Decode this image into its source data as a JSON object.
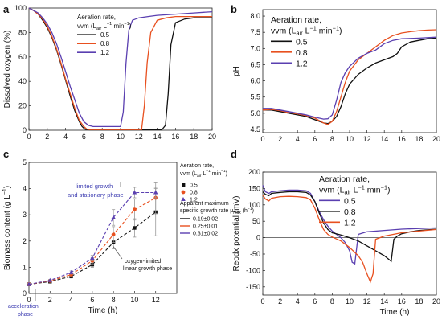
{
  "colors": {
    "black": "#111111",
    "orange": "#e8501f",
    "purple": "#5a3fb0",
    "annot": "#3a3ab0"
  },
  "chart_data": [
    {
      "panel": "a",
      "type": "line",
      "xlabel": "",
      "ylabel": "Dissolved oxygen (%)",
      "xlim": [
        0,
        20
      ],
      "ylim": [
        0,
        100
      ],
      "xticks": [
        0,
        2,
        4,
        6,
        8,
        10,
        12,
        14,
        16,
        18,
        20
      ],
      "yticks": [
        0,
        20,
        40,
        60,
        80,
        100
      ],
      "legend": {
        "title_line1": "Aeration rate,",
        "title_line2": "vvm (L",
        "title_sub": "air",
        "title_mid": " L",
        "title_sup": "−1",
        "title_end": " min",
        "title_sup2": "−1",
        "title_close": ")",
        "placement": "top-middle"
      },
      "series": [
        {
          "name": "0.5",
          "color": "black",
          "x": [
            0,
            0.5,
            1,
            1.5,
            2,
            2.5,
            3,
            3.5,
            4,
            4.5,
            5,
            5.5,
            5.8,
            6.1,
            6.3,
            6.6,
            7,
            9,
            11,
            13,
            14,
            14.5,
            14.9,
            15.2,
            15.5,
            16,
            17,
            18,
            19,
            20
          ],
          "y": [
            100,
            98,
            95,
            90,
            84,
            76,
            66,
            54,
            41,
            28,
            16,
            7,
            3,
            1,
            0.5,
            0.3,
            0.3,
            0.3,
            0.3,
            0.3,
            0.3,
            0.3,
            4,
            30,
            70,
            88,
            91,
            92,
            92,
            92
          ]
        },
        {
          "name": "0.8",
          "color": "orange",
          "x": [
            0,
            0.5,
            1,
            1.5,
            2,
            2.5,
            3,
            3.5,
            4,
            4.5,
            5,
            5.5,
            6,
            6.3,
            6.6,
            7,
            9,
            11,
            12,
            12.3,
            12.6,
            12.9,
            13.3,
            14,
            15,
            16,
            18,
            20
          ],
          "y": [
            100,
            98,
            95,
            91,
            85,
            77,
            67,
            55,
            42,
            30,
            18,
            8,
            3,
            1,
            0.5,
            0.5,
            0.5,
            0.5,
            0.5,
            0.5,
            20,
            55,
            80,
            90,
            92,
            93,
            93,
            93
          ]
        },
        {
          "name": "1.2",
          "color": "purple",
          "x": [
            0,
            0.5,
            1,
            1.5,
            2,
            2.5,
            3,
            3.5,
            4,
            4.5,
            5,
            5.5,
            6,
            6.5,
            7,
            8,
            9,
            10,
            10.3,
            10.6,
            10.9,
            11.3,
            12,
            13,
            14,
            16,
            18,
            20
          ],
          "y": [
            100,
            98,
            96,
            92,
            87,
            80,
            71,
            60,
            48,
            36,
            25,
            14,
            7,
            4,
            3,
            3,
            3,
            3,
            15,
            55,
            82,
            90,
            92,
            93,
            94,
            95,
            96,
            97
          ]
        }
      ]
    },
    {
      "panel": "b",
      "type": "line",
      "xlabel": "",
      "ylabel": "pH",
      "xlim": [
        0,
        20
      ],
      "ylim": [
        4.4,
        8.2
      ],
      "xticks": [
        0,
        2,
        4,
        6,
        8,
        10,
        12,
        14,
        16,
        18,
        20
      ],
      "yticks": [
        4.5,
        5.0,
        5.5,
        6.0,
        6.5,
        7.0,
        7.5,
        8.0
      ],
      "ytick_labels": [
        "4.5",
        "5.0",
        "5.5",
        "6.0",
        "6.5",
        "7.0",
        "7.5",
        "8.0"
      ],
      "legend": {
        "title_line1": "Aeration rate,",
        "title_line2": "vvm (L",
        "title_sub": "air",
        "title_mid": " L",
        "title_sup": "−1",
        "title_end": " min",
        "title_sup2": "−1",
        "title_close": ")",
        "placement": "top-left"
      },
      "series": [
        {
          "name": "0.5",
          "color": "black",
          "x": [
            0,
            1,
            2,
            3,
            4,
            5,
            6,
            7,
            7.5,
            8,
            8.5,
            9,
            9.5,
            10,
            11,
            12,
            13,
            14,
            15,
            15.5,
            16,
            17,
            18,
            19,
            20
          ],
          "y": [
            5.1,
            5.1,
            5.05,
            5.0,
            4.95,
            4.9,
            4.8,
            4.7,
            4.68,
            4.75,
            4.9,
            5.2,
            5.6,
            5.9,
            6.2,
            6.4,
            6.55,
            6.65,
            6.75,
            6.85,
            7.05,
            7.2,
            7.25,
            7.3,
            7.32
          ]
        },
        {
          "name": "0.8",
          "color": "orange",
          "x": [
            0,
            1,
            2,
            3,
            4,
            5,
            6,
            7,
            7.5,
            8,
            8.5,
            9,
            9.5,
            10,
            11,
            12,
            13,
            14,
            15,
            16,
            17,
            18,
            19,
            20
          ],
          "y": [
            5.1,
            5.12,
            5.08,
            5.02,
            4.98,
            4.93,
            4.85,
            4.7,
            4.65,
            4.75,
            5.05,
            5.5,
            5.95,
            6.3,
            6.65,
            6.85,
            7.05,
            7.25,
            7.4,
            7.48,
            7.52,
            7.55,
            7.57,
            7.58
          ]
        },
        {
          "name": "1.2",
          "color": "purple",
          "x": [
            0,
            1,
            2,
            3,
            4,
            5,
            6,
            7,
            7.5,
            8,
            8.5,
            9,
            9.5,
            10,
            11,
            12,
            13,
            14,
            15,
            16,
            18,
            20
          ],
          "y": [
            5.15,
            5.15,
            5.1,
            5.05,
            5.0,
            4.95,
            4.88,
            4.82,
            4.83,
            4.95,
            5.4,
            5.95,
            6.25,
            6.45,
            6.7,
            6.85,
            6.95,
            7.15,
            7.25,
            7.3,
            7.32,
            7.35
          ]
        }
      ]
    },
    {
      "panel": "c",
      "type": "scatter",
      "xlabel": "Time (h)",
      "ylabel": "Biomass content (g L",
      "ylabel_sup": "−1",
      "ylabel_close": ")",
      "xlim": [
        0,
        14
      ],
      "ylim": [
        0,
        5
      ],
      "xticks": [
        0,
        2,
        4,
        6,
        8,
        10,
        12
      ],
      "yticks": [
        0,
        1,
        2,
        3,
        4,
        5
      ],
      "legend": {
        "title_line1": "Aeration rate,",
        "title_line2": "vvm (L",
        "title_sub": "air",
        "title_mid": " L",
        "title_sup": "−1",
        "title_end": " min",
        "title_sup2": "−1",
        "title_close": ")",
        "placement": "right"
      },
      "rate_legend_title": [
        "Apparent maximum",
        "specific growth rate μ",
        "max",
        " (h",
        "−1",
        ")"
      ],
      "rate_items": [
        "0.19±0.02",
        "0.25±0.01",
        "0.31±0.02"
      ],
      "annotations": {
        "limited": [
          "limited growth",
          "and stationary phase"
        ],
        "linear": [
          "oxygen-limited",
          "linear growth phase"
        ],
        "accel": [
          "acceleration",
          "phase"
        ]
      },
      "series": [
        {
          "name": "0.5",
          "color": "black",
          "marker": "square",
          "x": [
            0,
            2,
            4,
            6,
            8,
            10,
            12
          ],
          "y": [
            0.35,
            0.45,
            0.65,
            1.1,
            1.95,
            2.5,
            3.1
          ],
          "err": [
            0.03,
            0.04,
            0.06,
            0.1,
            0.25,
            0.35,
            0.9
          ]
        },
        {
          "name": "0.8",
          "color": "orange",
          "marker": "circle",
          "x": [
            0,
            2,
            4,
            6,
            8,
            10,
            12
          ],
          "y": [
            0.35,
            0.48,
            0.72,
            1.25,
            2.25,
            3.2,
            3.65
          ],
          "err": [
            0.03,
            0.04,
            0.06,
            0.12,
            0.3,
            0.4,
            0.6
          ]
        },
        {
          "name": "1.2",
          "color": "purple",
          "marker": "triangle",
          "x": [
            0,
            2,
            4,
            6,
            8,
            10,
            12
          ],
          "y": [
            0.35,
            0.5,
            0.8,
            1.35,
            2.9,
            3.85,
            3.85
          ],
          "err": [
            0.03,
            0.04,
            0.06,
            0.1,
            0.3,
            0.2,
            0.2
          ]
        }
      ]
    },
    {
      "panel": "d",
      "type": "line",
      "xlabel": "Time (h)",
      "ylabel": "Reodx potential (mV)",
      "xlim": [
        0,
        20
      ],
      "ylim": [
        -175,
        200
      ],
      "xticks": [
        0,
        2,
        4,
        6,
        8,
        10,
        12,
        14,
        16,
        18,
        20
      ],
      "yticks": [
        -150,
        -100,
        -50,
        0,
        50,
        100,
        150,
        200
      ],
      "legend": {
        "title_line1": "Aeration rate,",
        "title_line2": "vvm (L",
        "title_sub": "air",
        "title_mid": " L",
        "title_sup": "−1",
        "title_end": " min",
        "title_sup2": "−1",
        "title_close": ")",
        "placement": "top-right"
      },
      "series": [
        {
          "name": "0.5",
          "color": "purple",
          "x": [
            0,
            0.3,
            0.7,
            1,
            2,
            3,
            4,
            5,
            5.5,
            6,
            6.5,
            7,
            7.5,
            8,
            8.5,
            9,
            9.5,
            10,
            10.3,
            10.6,
            11,
            12,
            14,
            16,
            18,
            20
          ],
          "y": [
            160,
            140,
            135,
            140,
            143,
            145,
            145,
            143,
            135,
            110,
            80,
            55,
            35,
            20,
            10,
            0,
            -15,
            -40,
            -75,
            -80,
            10,
            18,
            22,
            26,
            28,
            30
          ]
        },
        {
          "name": "0.8",
          "color": "black",
          "x": [
            0,
            0.3,
            0.7,
            1,
            2,
            3,
            4,
            5,
            5.5,
            6,
            6.5,
            7,
            7.5,
            8,
            9,
            10,
            11,
            12,
            13,
            14,
            14.8,
            15.1,
            15.5,
            16,
            17,
            18,
            20
          ],
          "y": [
            140,
            132,
            128,
            135,
            138,
            140,
            140,
            138,
            130,
            110,
            75,
            45,
            25,
            15,
            8,
            0,
            -10,
            -25,
            -40,
            -55,
            -72,
            -5,
            5,
            12,
            18,
            22,
            26
          ]
        },
        {
          "name": "1.2",
          "color": "orange",
          "x": [
            0,
            0.3,
            0.7,
            1,
            2,
            3,
            4,
            5,
            5.5,
            6,
            6.5,
            7,
            7.5,
            8,
            9,
            10,
            11,
            11.5,
            12,
            12.4,
            12.7,
            13,
            14,
            16,
            18,
            20
          ],
          "y": [
            130,
            118,
            112,
            120,
            125,
            126,
            125,
            122,
            115,
            90,
            55,
            25,
            10,
            2,
            -10,
            -30,
            -55,
            -75,
            -110,
            -135,
            -110,
            -5,
            5,
            15,
            20,
            25
          ]
        }
      ]
    }
  ],
  "panel_labels": [
    "a",
    "b",
    "c",
    "d"
  ]
}
